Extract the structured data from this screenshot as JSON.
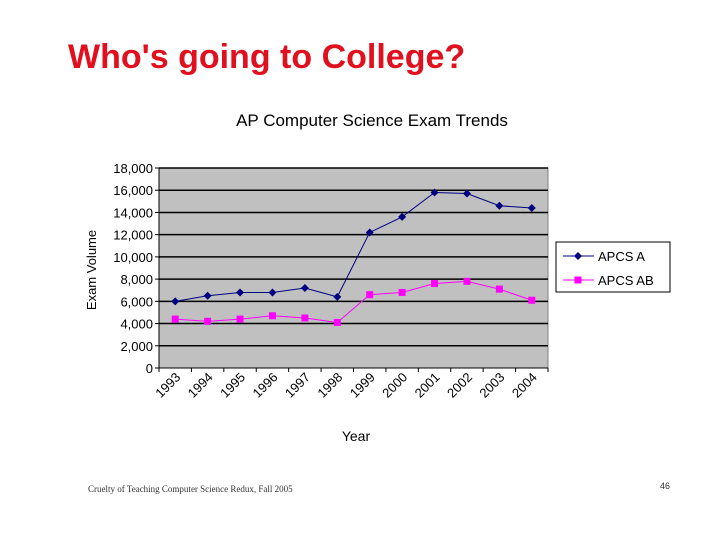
{
  "slide": {
    "title": "Who's going to College?",
    "footer": "Cruelty of Teaching Computer Science Redux, Fall 2005",
    "page_number": "46"
  },
  "chart_data": {
    "type": "line",
    "title": "AP Computer Science Exam Trends",
    "xlabel": "Year",
    "ylabel": "Exam Volume",
    "categories": [
      "1993",
      "1994",
      "1995",
      "1996",
      "1997",
      "1998",
      "1999",
      "2000",
      "2001",
      "2002",
      "2003",
      "2004"
    ],
    "ylim": [
      0,
      18000
    ],
    "yticks": [
      0,
      2000,
      4000,
      6000,
      8000,
      10000,
      12000,
      14000,
      16000,
      18000
    ],
    "ytick_labels": [
      "0",
      "2,000",
      "4,000",
      "6,000",
      "8,000",
      "10,000",
      "12,000",
      "14,000",
      "16,000",
      "18,000"
    ],
    "grid": true,
    "legend_position": "right",
    "plot_background": "#c0c0c0",
    "series": [
      {
        "name": "APCS A",
        "color": "#000080",
        "marker": "diamond",
        "values": [
          6000,
          6500,
          6800,
          6800,
          7200,
          6400,
          12200,
          13600,
          15800,
          15700,
          14600,
          14400
        ]
      },
      {
        "name": "APCS AB",
        "color": "#ff00ff",
        "marker": "square",
        "values": [
          4400,
          4200,
          4400,
          4700,
          4500,
          4100,
          6600,
          6800,
          7600,
          7800,
          7100,
          6100
        ]
      }
    ]
  }
}
